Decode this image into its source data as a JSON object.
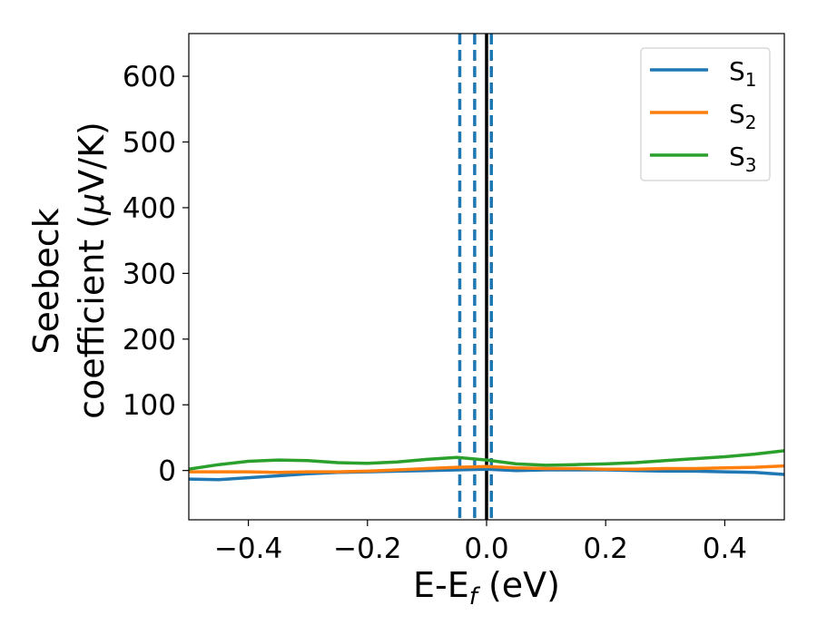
{
  "chart_data": {
    "type": "line",
    "xlabel": {
      "main": "E-E",
      "sub": "f",
      "unit": " (eV)"
    },
    "ylabel": {
      "line1": "Seebeck",
      "line2": "coefficient  (",
      "mu": "μ",
      "line2_end": "V/K)"
    },
    "xlim": [
      -0.5,
      0.5
    ],
    "ylim": [
      -75,
      665
    ],
    "xticks": [
      -0.4,
      -0.2,
      0.0,
      0.2,
      0.4
    ],
    "xtick_labels": [
      "−0.4",
      "−0.2",
      "0.0",
      "0.2",
      "0.4"
    ],
    "yticks": [
      0,
      100,
      200,
      300,
      400,
      500,
      600
    ],
    "ytick_labels": [
      "0",
      "100",
      "200",
      "300",
      "400",
      "500",
      "600"
    ],
    "grid": false,
    "legend_position": "top-right",
    "vlines": [
      {
        "x": -0.045,
        "style": "dashed",
        "color": "#1f77b4"
      },
      {
        "x": -0.02,
        "style": "dashed",
        "color": "#1f77b4"
      },
      {
        "x": 0.008,
        "style": "dashed",
        "color": "#1f77b4"
      },
      {
        "x": 0.0,
        "style": "solid",
        "color": "#000000"
      }
    ],
    "series": [
      {
        "name": "S",
        "sub": "1",
        "color": "#1f77b4",
        "x": [
          -0.5,
          -0.45,
          -0.4,
          -0.35,
          -0.3,
          -0.25,
          -0.2,
          -0.15,
          -0.1,
          -0.05,
          0.0,
          0.05,
          0.1,
          0.15,
          0.2,
          0.25,
          0.3,
          0.35,
          0.4,
          0.45,
          0.5
        ],
        "y": [
          -13,
          -14,
          -11,
          -8,
          -5,
          -3,
          -2,
          -1,
          0,
          1,
          2,
          0,
          1,
          1,
          1,
          0,
          -1,
          -1,
          -2,
          -3,
          -6
        ]
      },
      {
        "name": "S",
        "sub": "2",
        "color": "#ff7f0e",
        "x": [
          -0.5,
          -0.45,
          -0.4,
          -0.35,
          -0.3,
          -0.25,
          -0.2,
          -0.15,
          -0.1,
          -0.05,
          0.0,
          0.05,
          0.1,
          0.15,
          0.2,
          0.25,
          0.3,
          0.35,
          0.4,
          0.45,
          0.5
        ],
        "y": [
          -2,
          -2,
          -2,
          -3,
          -2,
          -2,
          -1,
          1,
          3,
          5,
          6,
          4,
          3,
          3,
          2,
          2,
          3,
          3,
          4,
          5,
          7
        ]
      },
      {
        "name": "S",
        "sub": "3",
        "color": "#2ca02c",
        "x": [
          -0.5,
          -0.45,
          -0.4,
          -0.35,
          -0.3,
          -0.25,
          -0.2,
          -0.15,
          -0.1,
          -0.05,
          0.0,
          0.05,
          0.1,
          0.15,
          0.2,
          0.25,
          0.3,
          0.35,
          0.4,
          0.45,
          0.5
        ],
        "y": [
          2,
          9,
          14,
          16,
          15,
          12,
          11,
          13,
          17,
          20,
          16,
          10,
          8,
          9,
          10,
          12,
          15,
          18,
          21,
          25,
          30
        ]
      }
    ]
  }
}
